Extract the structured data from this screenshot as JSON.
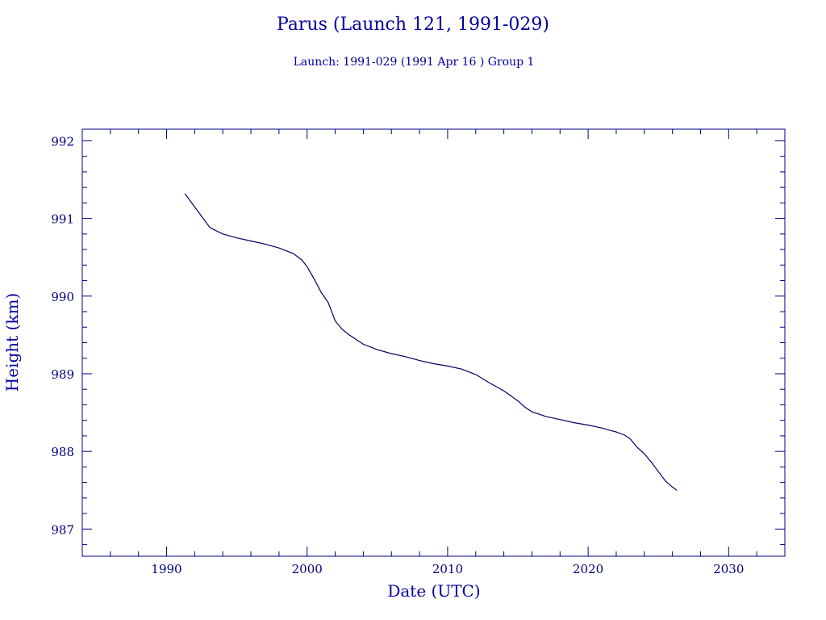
{
  "chart_data": {
    "type": "line",
    "title": "Parus (Launch 121, 1991-029)",
    "subtitle": "Launch: 1991-029  (1991 Apr 16 )  Group 1",
    "xlabel": "Date (UTC)",
    "ylabel": "Height (km)",
    "xlim": [
      1984,
      2034
    ],
    "ylim": [
      986.65,
      992.15
    ],
    "xticks": [
      1990,
      2000,
      2010,
      2020,
      2030
    ],
    "xtick_labels": [
      "1990",
      "2000",
      "2010",
      "2020",
      "2030"
    ],
    "yticks": [
      987,
      988,
      989,
      990,
      991,
      992
    ],
    "ytick_labels": [
      "987",
      "988",
      "989",
      "990",
      "991",
      "992"
    ],
    "grid": false,
    "colors": {
      "line": "#000066",
      "axes": "#000080",
      "text": "#0000a0"
    },
    "series": [
      {
        "x": [
          1991.3,
          1992.2,
          1993.1,
          1994.0,
          1995.0,
          1996.0,
          1997.0,
          1998.0,
          1999.0,
          1999.6,
          2000.0,
          2000.5,
          2001.0,
          2001.5,
          2002.0,
          2002.5,
          2003.0,
          2004.0,
          2005.0,
          2006.0,
          2007.0,
          2008.0,
          2009.0,
          2010.0,
          2011.0,
          2012.0,
          2013.0,
          2014.0,
          2015.0,
          2015.5,
          2016.0,
          2017.0,
          2018.0,
          2019.0,
          2020.0,
          2021.0,
          2022.0,
          2022.6,
          2023.0,
          2023.5,
          2024.0,
          2024.5,
          2025.0,
          2025.5,
          2026.0,
          2026.3
        ],
        "y": [
          991.32,
          991.1,
          990.88,
          990.8,
          990.75,
          990.71,
          990.67,
          990.62,
          990.55,
          990.47,
          990.38,
          990.22,
          990.05,
          989.92,
          989.68,
          989.57,
          989.5,
          989.38,
          989.31,
          989.26,
          989.22,
          989.17,
          989.13,
          989.1,
          989.06,
          988.99,
          988.88,
          988.78,
          988.65,
          988.57,
          988.51,
          988.45,
          988.41,
          988.37,
          988.34,
          988.3,
          988.25,
          988.21,
          988.16,
          988.05,
          987.97,
          987.86,
          987.74,
          987.62,
          987.54,
          987.5
        ]
      }
    ]
  }
}
